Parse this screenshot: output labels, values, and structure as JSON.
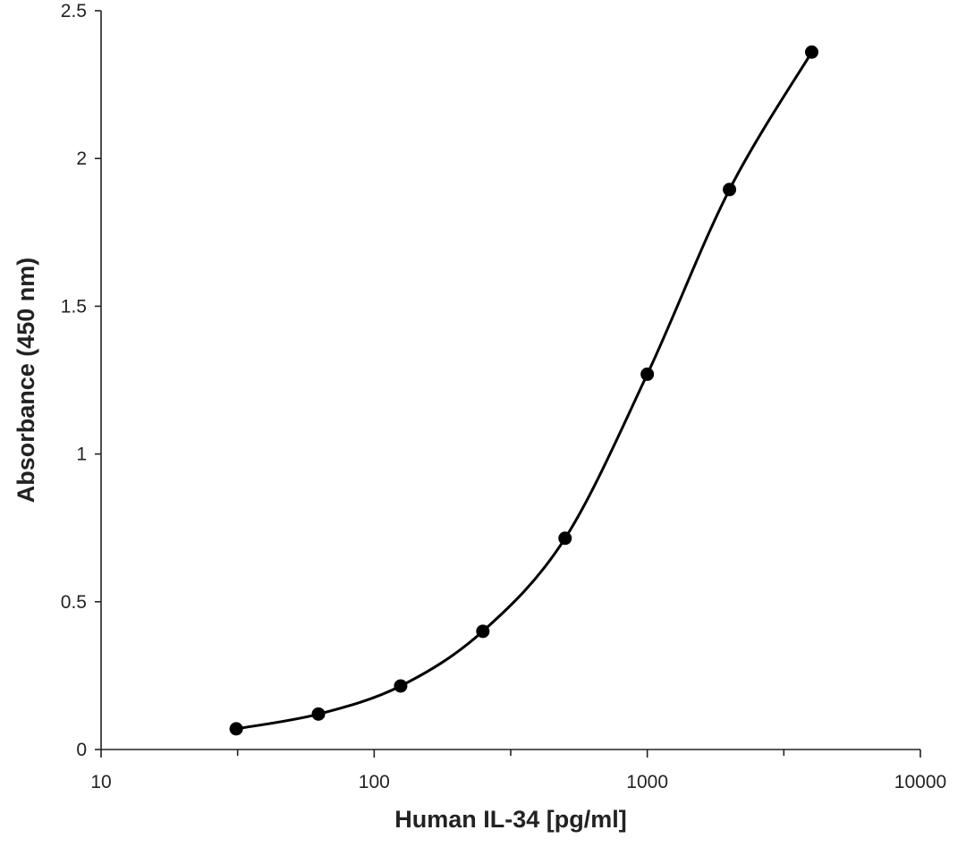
{
  "chart_data": {
    "type": "scatter",
    "title": "",
    "xlabel": "Human IL-34 [pg/ml]",
    "ylabel": "Absorbance (450 nm)",
    "x_scale": "log",
    "xlim": [
      10,
      10000
    ],
    "ylim": [
      0,
      2.5
    ],
    "x_ticks": [
      {
        "value": 10,
        "label": "10"
      },
      {
        "value": 100,
        "label": "100"
      },
      {
        "value": 1000,
        "label": "1000"
      },
      {
        "value": 10000,
        "label": "10000"
      }
    ],
    "y_ticks": [
      {
        "value": 0,
        "label": "0"
      },
      {
        "value": 0.5,
        "label": "0.5"
      },
      {
        "value": 1,
        "label": "1"
      },
      {
        "value": 1.5,
        "label": "1.5"
      },
      {
        "value": 2,
        "label": "2"
      },
      {
        "value": 2.5,
        "label": "2.5"
      }
    ],
    "grid": false,
    "legend": "none",
    "line_color": "#000000",
    "smooth_line": true,
    "series": [
      {
        "x": [
          31.25,
          62.5,
          125,
          250,
          500,
          1000,
          2000,
          4000
        ],
        "y": [
          0.07,
          0.12,
          0.215,
          0.4,
          0.715,
          1.27,
          1.895,
          2.36
        ]
      }
    ]
  }
}
